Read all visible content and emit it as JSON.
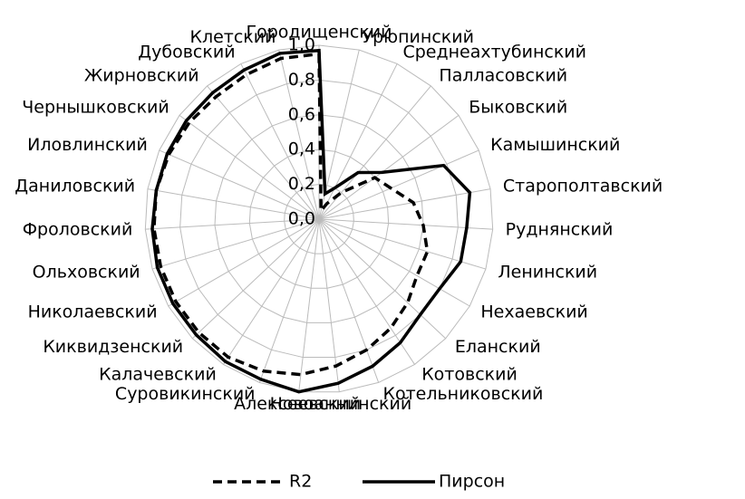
{
  "chart_data": {
    "type": "radar",
    "categories": [
      "Городищенский",
      "Урюпинский",
      "Среднеахтубинский",
      "Палласовский",
      "Быковский",
      "Камышинский",
      "Старополтавский",
      "Руднянский",
      "Ленинский",
      "Нехаевский",
      "Еланский",
      "Котовский",
      "Котельниковский",
      "Новоаннинский",
      "Алексеевский",
      "Суровикинский",
      "Калачевский",
      "Киквидзенский",
      "Николаевский",
      "Ольховский",
      "Фроловский",
      "Даниловский",
      "Иловлинский",
      "Чернышковский",
      "Жирновский",
      "Дубовский",
      "Клетский"
    ],
    "series": [
      {
        "name": "R2",
        "color": "#000000",
        "dash": true,
        "values": [
          0.95,
          0.05,
          0.1,
          0.2,
          0.4,
          0.45,
          0.55,
          0.6,
          0.65,
          0.65,
          0.7,
          0.75,
          0.8,
          0.85,
          0.9,
          0.93,
          0.95,
          0.95,
          0.95,
          0.95,
          0.95,
          0.95,
          0.94,
          0.93,
          0.92,
          0.93,
          0.95
        ]
      },
      {
        "name": "Пирсон",
        "color": "#000000",
        "dash": false,
        "values": [
          0.97,
          0.15,
          0.2,
          0.35,
          0.45,
          0.78,
          0.88,
          0.85,
          0.85,
          0.8,
          0.8,
          0.85,
          0.9,
          0.95,
          1.0,
          0.98,
          0.98,
          0.97,
          0.97,
          0.97,
          0.96,
          0.95,
          0.95,
          0.95,
          0.95,
          0.96,
          0.98
        ]
      }
    ],
    "ylim": [
      0,
      1
    ],
    "yticks": [
      {
        "value": 0,
        "label": "0,0"
      },
      {
        "value": 0.2,
        "label": "0,2"
      },
      {
        "value": 0.4,
        "label": "0,4"
      },
      {
        "value": 0.6,
        "label": "0,6"
      },
      {
        "value": 0.8,
        "label": "0,8"
      },
      {
        "value": 1,
        "label": "1,0"
      }
    ],
    "grid": true,
    "legend": "bottom"
  }
}
